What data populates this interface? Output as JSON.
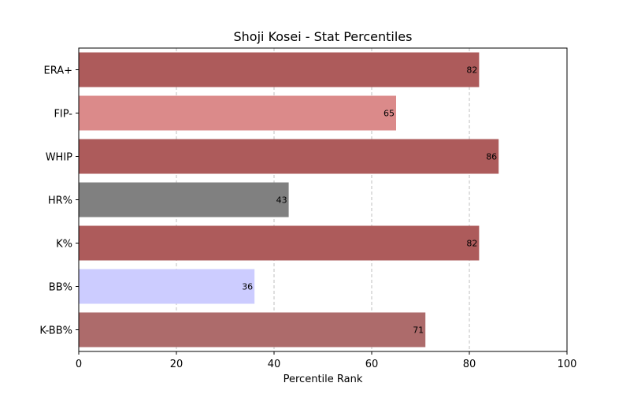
{
  "chart_data": {
    "type": "bar",
    "orientation": "horizontal",
    "title": "Shoji Kosei - Stat Percentiles",
    "xlabel": "Percentile Rank",
    "ylabel": "",
    "xlim": [
      0,
      100
    ],
    "xticks": [
      0,
      20,
      40,
      60,
      80,
      100
    ],
    "grid": "vertical-dashed",
    "categories": [
      "ERA+",
      "FIP-",
      "WHIP",
      "HR%",
      "K%",
      "BB%",
      "K-BB%"
    ],
    "values": [
      82,
      65,
      86,
      43,
      82,
      36,
      71
    ],
    "colors": [
      "#ad5b5b",
      "#db8a8a",
      "#ad5b5b",
      "#808080",
      "#ad5b5b",
      "#ccccff",
      "#ad6b6b"
    ]
  }
}
